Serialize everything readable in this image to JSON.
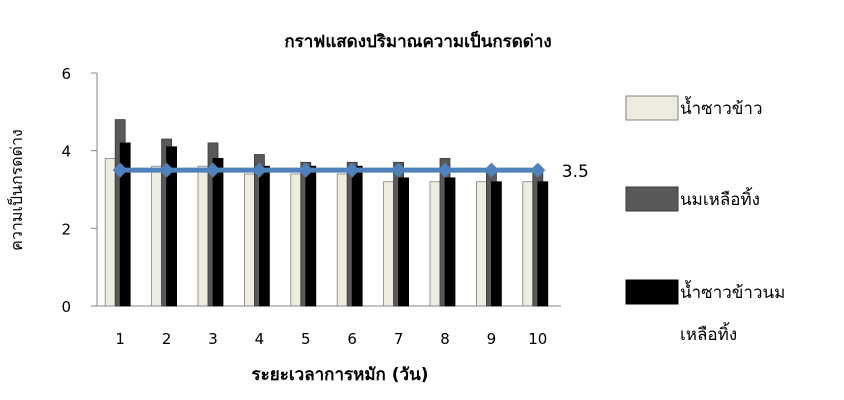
{
  "chart_data": {
    "type": "bar",
    "title": "กราฟแสดงปริมาณความเป็นกรดด่าง",
    "xlabel": "ระยะเวลาการหมัก (วัน)",
    "ylabel": "ความเป็นกรดด่าง",
    "categories": [
      "1",
      "2",
      "3",
      "4",
      "5",
      "6",
      "7",
      "8",
      "9",
      "10"
    ],
    "ylim": [
      0,
      6
    ],
    "yticks": [
      "0",
      "2",
      "4",
      "6"
    ],
    "grid": false,
    "legend_position": "right",
    "series": [
      {
        "name": "น้ำซาวข้าว",
        "values": [
          3.8,
          3.6,
          3.6,
          3.4,
          3.4,
          3.4,
          3.2,
          3.2,
          3.2,
          3.2
        ],
        "color": "#eeece1"
      },
      {
        "name": "นมเหลือทิ้ง",
        "values": [
          4.8,
          4.3,
          4.2,
          3.9,
          3.7,
          3.7,
          3.7,
          3.8,
          3.5,
          3.5
        ],
        "color": "#595959"
      },
      {
        "name": "น้ำซาวข้าวนมเหลือทิ้ง",
        "values": [
          4.2,
          4.1,
          3.8,
          3.6,
          3.6,
          3.6,
          3.3,
          3.3,
          3.2,
          3.2
        ],
        "color": "#000000"
      }
    ],
    "reference_line": {
      "value": 3.5,
      "label": "3.5",
      "color": "#4f81bd"
    }
  }
}
